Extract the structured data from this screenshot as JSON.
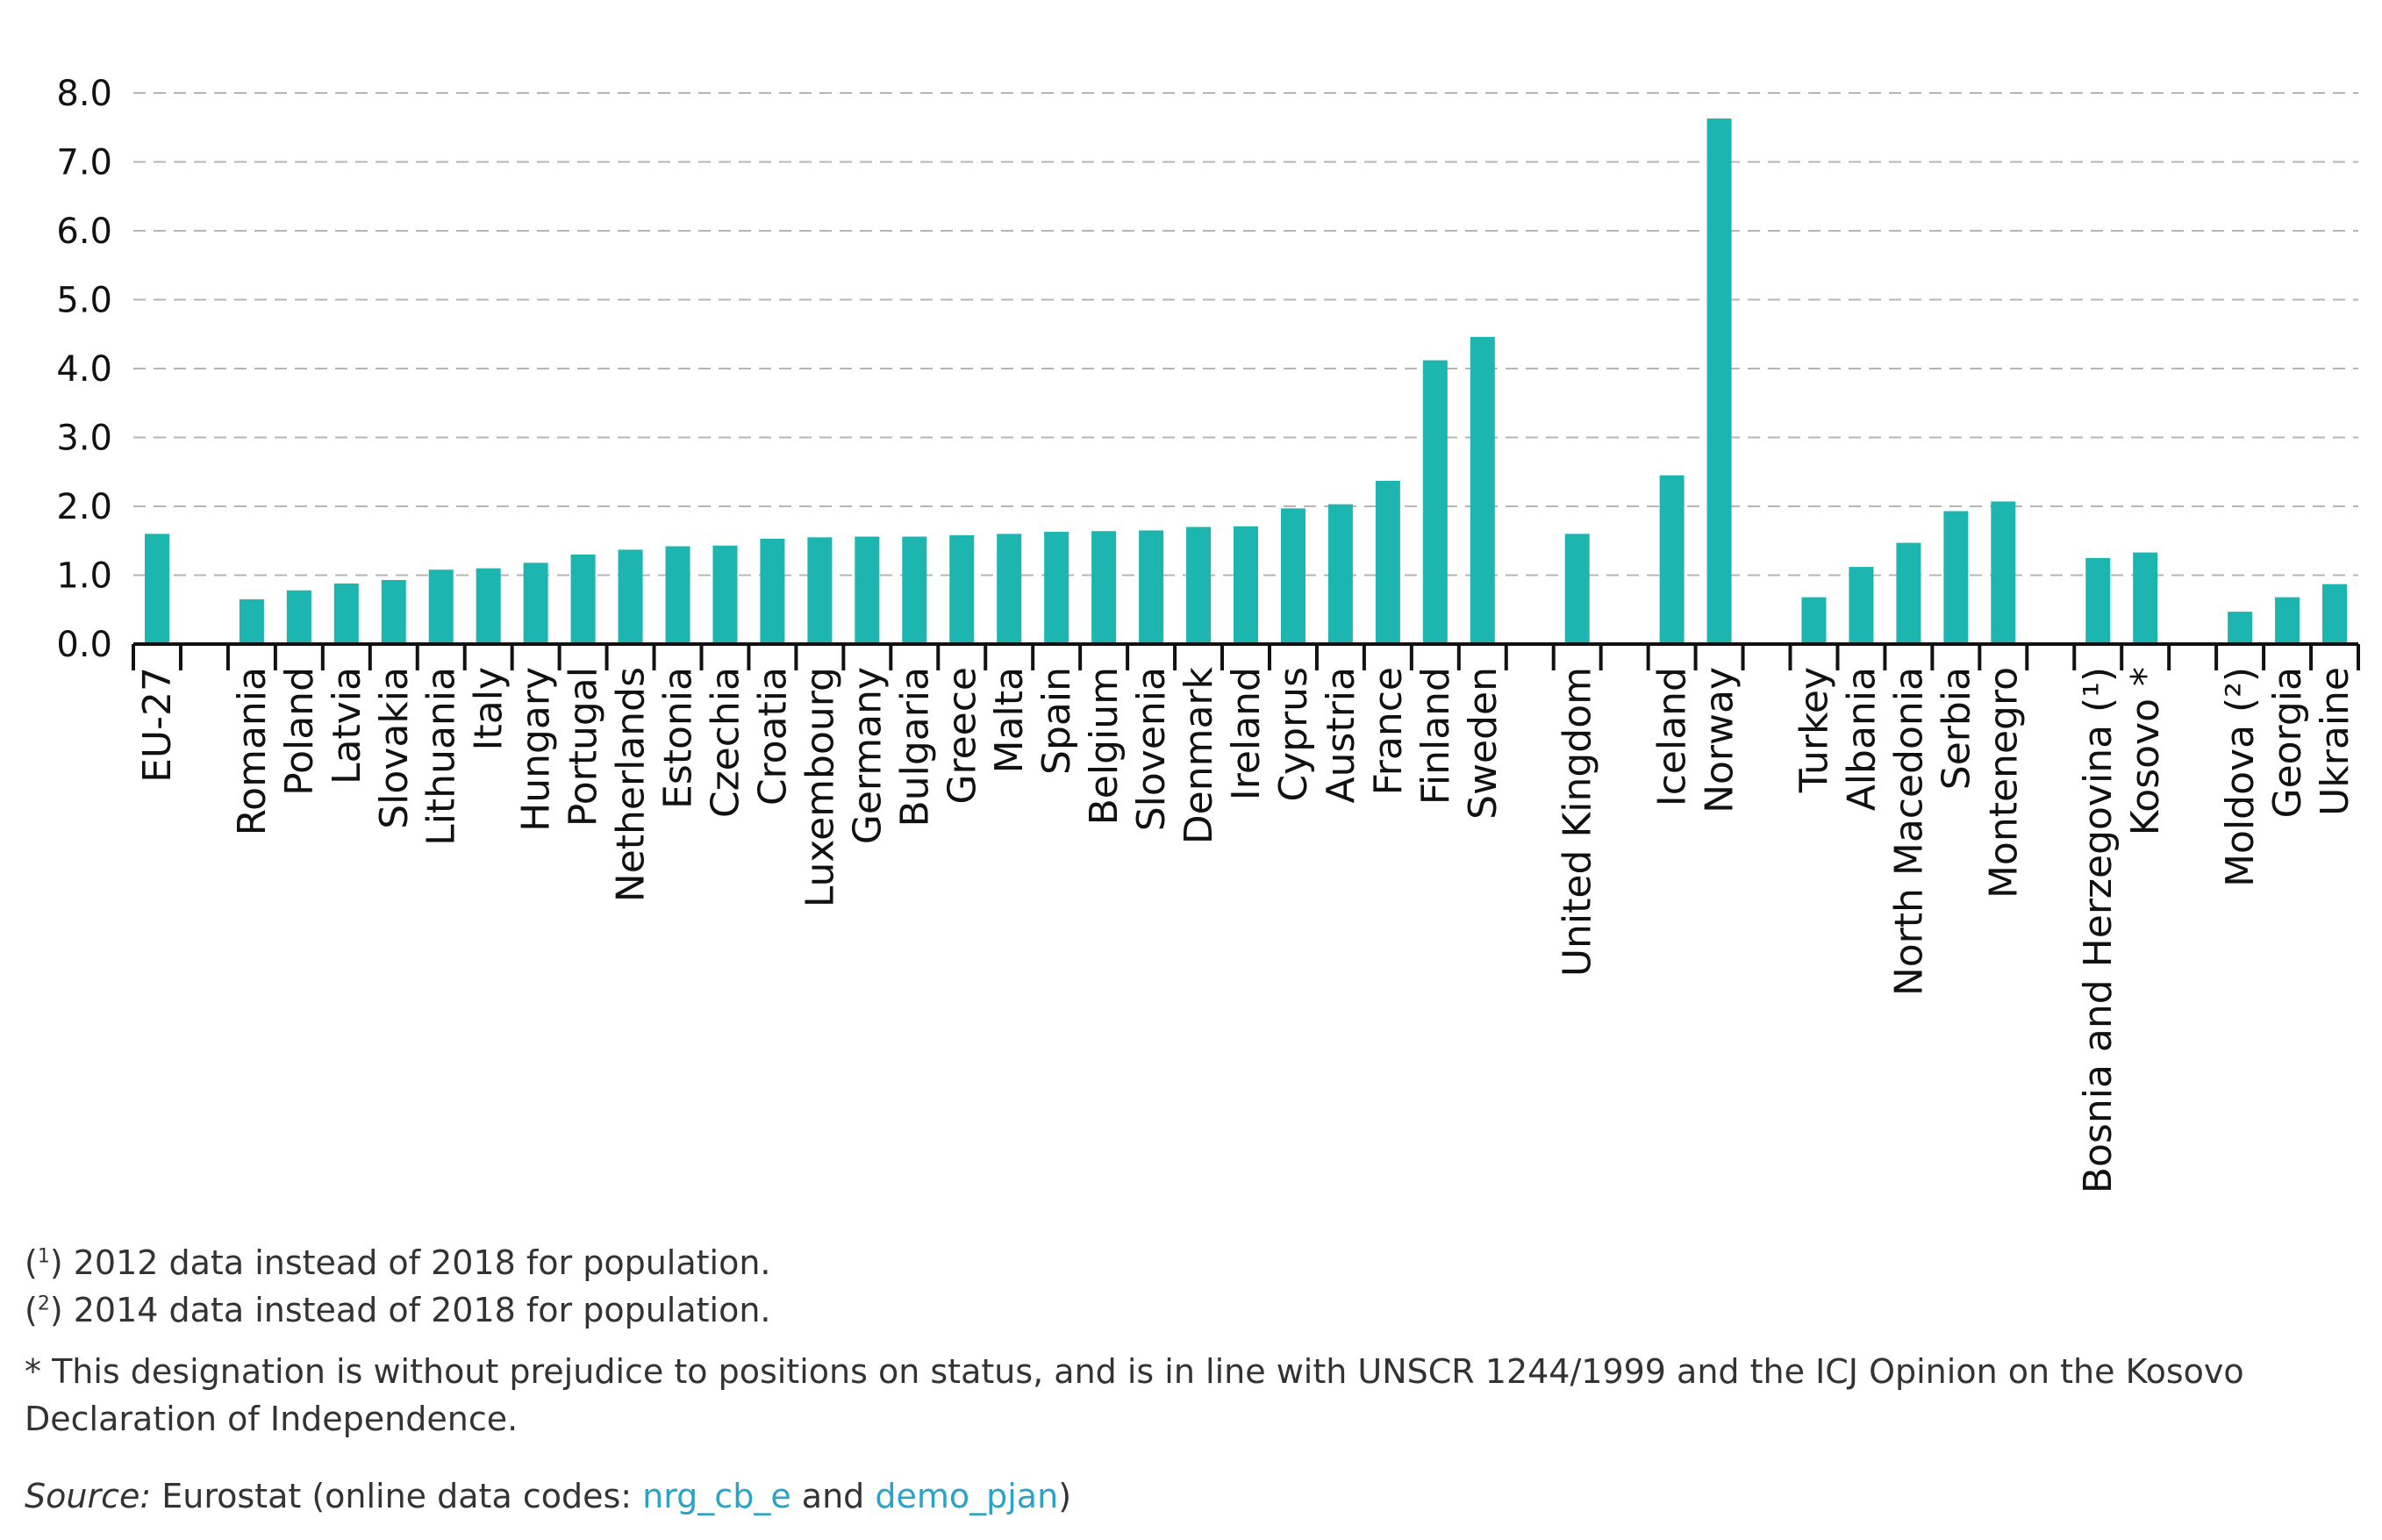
{
  "chart_data": {
    "type": "bar",
    "title": "",
    "xlabel": "",
    "ylabel": "",
    "ylim": [
      0,
      8
    ],
    "yticks": [
      "0.0",
      "1.0",
      "2.0",
      "3.0",
      "4.0",
      "5.0",
      "6.0",
      "7.0",
      "8.0"
    ],
    "grid": true,
    "bar_color": "#1cb5b0",
    "groups": [
      {
        "categories": [
          "EU-27"
        ],
        "values": [
          1.6
        ]
      },
      {
        "categories": [
          "Romania",
          "Poland",
          "Latvia",
          "Slovakia",
          "Lithuania",
          "Italy",
          "Hungary",
          "Portugal",
          "Netherlands",
          "Estonia",
          "Czechia",
          "Croatia",
          "Luxembourg",
          "Germany",
          "Bulgaria",
          "Greece",
          "Malta",
          "Spain",
          "Belgium",
          "Slovenia",
          "Denmark",
          "Ireland",
          "Cyprus",
          "Austria",
          "France",
          "Finland",
          "Sweden"
        ],
        "values": [
          0.65,
          0.78,
          0.88,
          0.93,
          1.08,
          1.1,
          1.18,
          1.3,
          1.37,
          1.42,
          1.43,
          1.53,
          1.55,
          1.56,
          1.56,
          1.58,
          1.6,
          1.63,
          1.64,
          1.65,
          1.7,
          1.71,
          1.97,
          2.03,
          2.37,
          4.12,
          4.46
        ]
      },
      {
        "categories": [
          "United Kingdom"
        ],
        "values": [
          1.6
        ]
      },
      {
        "categories": [
          "Iceland",
          "Norway"
        ],
        "values": [
          2.45,
          7.63
        ]
      },
      {
        "categories": [
          "Turkey",
          "Albania",
          "North Macedonia",
          "Serbia",
          "Montenegro"
        ],
        "values": [
          0.68,
          1.12,
          1.47,
          1.93,
          2.07
        ]
      },
      {
        "categories": [
          "Bosnia and Herzegovina (¹)",
          "Kosovo *"
        ],
        "values": [
          1.25,
          1.33
        ]
      },
      {
        "categories": [
          "Moldova (²)",
          "Georgia",
          "Ukraine"
        ],
        "values": [
          0.47,
          0.68,
          0.87
        ]
      }
    ]
  },
  "footnotes": {
    "note1_mark": "1",
    "note1_text": ") 2012 data instead of 2018 for population.",
    "note2_mark": "2",
    "note2_text": ") 2014 data instead of 2018 for population.",
    "note3_text": "* This designation is without prejudice to positions on status, and is in line with UNSCR 1244/1999 and the ICJ Opinion on the Kosovo Declaration of Independence.",
    "source_label": "Source:",
    "source_text_before": " Eurostat (online data codes: ",
    "source_link1": "nrg_cb_e",
    "source_and": " and ",
    "source_link2": "demo_pjan",
    "source_close": ")"
  }
}
